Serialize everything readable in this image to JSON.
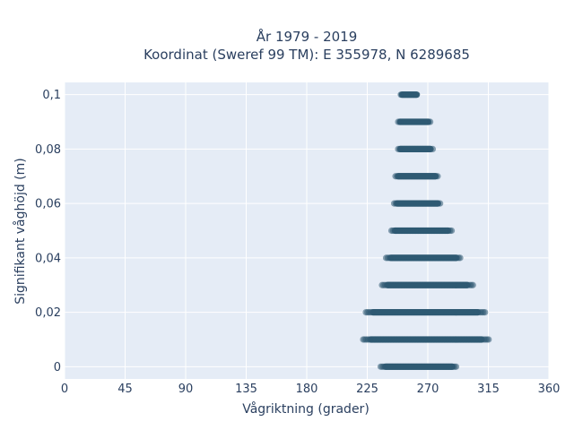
{
  "chart_data": {
    "type": "scatter",
    "title_line1": "År 1979 - 2019",
    "title_line2": "Koordinat (Sweref 99 TM): E 355978, N 6289685",
    "xlabel": "Vågriktning (grader)",
    "ylabel": "Signifikant våghöjd (m)",
    "xlim": [
      0,
      360
    ],
    "ylim": [
      -0.0045,
      0.1045
    ],
    "x_ticks": [
      0,
      45,
      90,
      135,
      180,
      225,
      270,
      315,
      360
    ],
    "x_tick_labels": [
      "0",
      "45",
      "90",
      "135",
      "180",
      "225",
      "270",
      "315",
      "360"
    ],
    "y_ticks": [
      0,
      0.02,
      0.04,
      0.06,
      0.08,
      0.1
    ],
    "y_tick_labels": [
      "0",
      "0,02",
      "0,04",
      "0,06",
      "0,08",
      "0,1"
    ],
    "grid": true,
    "marker_color": "#2f5a73",
    "plot_bg": "#e5ecf6",
    "rows": [
      {
        "y": 0.0,
        "x_min": 235,
        "x_max": 292
      },
      {
        "y": 0.01,
        "x_min": 222,
        "x_max": 316
      },
      {
        "y": 0.02,
        "x_min": 224,
        "x_max": 313
      },
      {
        "y": 0.03,
        "x_min": 236,
        "x_max": 304
      },
      {
        "y": 0.04,
        "x_min": 239,
        "x_max": 295
      },
      {
        "y": 0.05,
        "x_min": 243,
        "x_max": 288
      },
      {
        "y": 0.06,
        "x_min": 245,
        "x_max": 280
      },
      {
        "y": 0.07,
        "x_min": 246,
        "x_max": 278
      },
      {
        "y": 0.08,
        "x_min": 248,
        "x_max": 274
      },
      {
        "y": 0.09,
        "x_min": 248,
        "x_max": 272
      },
      {
        "y": 0.1,
        "x_min": 250,
        "x_max": 263
      }
    ]
  }
}
